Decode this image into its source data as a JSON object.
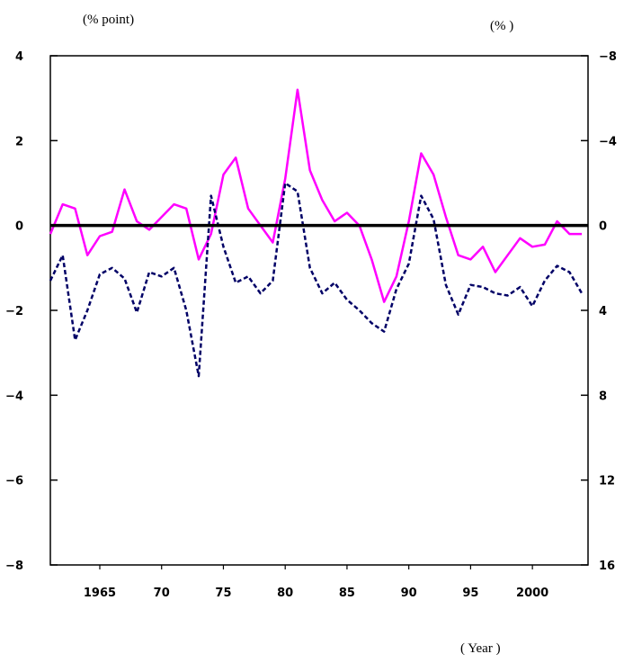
{
  "chart_data": {
    "type": "line",
    "left_axis": {
      "unit_label": "(% point)",
      "ylim": [
        -8,
        4
      ],
      "ticks": [
        4,
        2,
        0,
        -2,
        -4,
        -6,
        -8
      ],
      "tick_labels": [
        "4",
        "2",
        "0",
        "−2",
        "−4",
        "−6",
        "−8"
      ]
    },
    "right_axis": {
      "unit_label": "(% )",
      "inverted": true,
      "ylim": [
        -8,
        16
      ],
      "ticks": [
        -8,
        -4,
        0,
        4,
        8,
        12,
        16
      ],
      "tick_labels": [
        "−8",
        "−4",
        "0",
        "4",
        "8",
        "12",
        "16"
      ]
    },
    "x_axis": {
      "label": "( Year )",
      "xlim": [
        1961,
        2004.5
      ],
      "ticks": [
        1965,
        1970,
        1975,
        1980,
        1985,
        1990,
        1995,
        2000
      ],
      "tick_labels": [
        "1965",
        "70",
        "75",
        "80",
        "85",
        "90",
        "95",
        "2000"
      ]
    },
    "zero_line": true,
    "grid": false,
    "series": [
      {
        "axis": "left",
        "color": "#ff00ff",
        "style": "solid",
        "x": [
          1961,
          1962,
          1963,
          1964,
          1965,
          1966,
          1967,
          1968,
          1969,
          1970,
          1971,
          1972,
          1973,
          1974,
          1975,
          1976,
          1977,
          1978,
          1979,
          1980,
          1981,
          1982,
          1983,
          1984,
          1985,
          1986,
          1987,
          1988,
          1989,
          1990,
          1991,
          1992,
          1993,
          1994,
          1995,
          1996,
          1997,
          1998,
          1999,
          2000,
          2001,
          2002,
          2003,
          2004
        ],
        "values": [
          -0.2,
          0.5,
          0.4,
          -0.7,
          -0.25,
          -0.15,
          0.85,
          0.1,
          -0.1,
          0.2,
          0.5,
          0.4,
          -0.8,
          -0.2,
          1.2,
          1.6,
          0.4,
          0.0,
          -0.4,
          1.1,
          3.2,
          1.3,
          0.6,
          0.1,
          0.3,
          0.0,
          -0.8,
          -1.8,
          -1.2,
          0.1,
          1.7,
          1.2,
          0.2,
          -0.7,
          -0.8,
          -0.5,
          -1.1,
          -0.7,
          -0.3,
          -0.5,
          -0.45,
          0.1,
          -0.2,
          -0.2
        ]
      },
      {
        "axis": "right",
        "color": "#000066",
        "style": "dashed",
        "x": [
          1961,
          1962,
          1963,
          1964,
          1965,
          1966,
          1967,
          1968,
          1969,
          1970,
          1971,
          1972,
          1973,
          1974,
          1975,
          1976,
          1977,
          1978,
          1979,
          1980,
          1981,
          1982,
          1983,
          1984,
          1985,
          1986,
          1987,
          1988,
          1989,
          1990,
          1991,
          1992,
          1993,
          1994,
          1995,
          1996,
          1997,
          1998,
          1999,
          2000,
          2001,
          2002,
          2003,
          2004
        ],
        "values": [
          2.6,
          1.4,
          5.4,
          4.0,
          2.3,
          2.0,
          2.5,
          4.1,
          2.2,
          2.4,
          2.0,
          4.0,
          7.1,
          -1.4,
          1.0,
          2.7,
          2.4,
          3.2,
          2.6,
          -2.0,
          -1.6,
          2.0,
          3.2,
          2.7,
          3.5,
          4.0,
          4.6,
          5.0,
          3.0,
          1.8,
          -1.4,
          -0.3,
          2.8,
          4.2,
          2.8,
          2.9,
          3.2,
          3.3,
          2.9,
          3.8,
          2.6,
          1.9,
          2.2,
          3.2
        ]
      }
    ]
  }
}
